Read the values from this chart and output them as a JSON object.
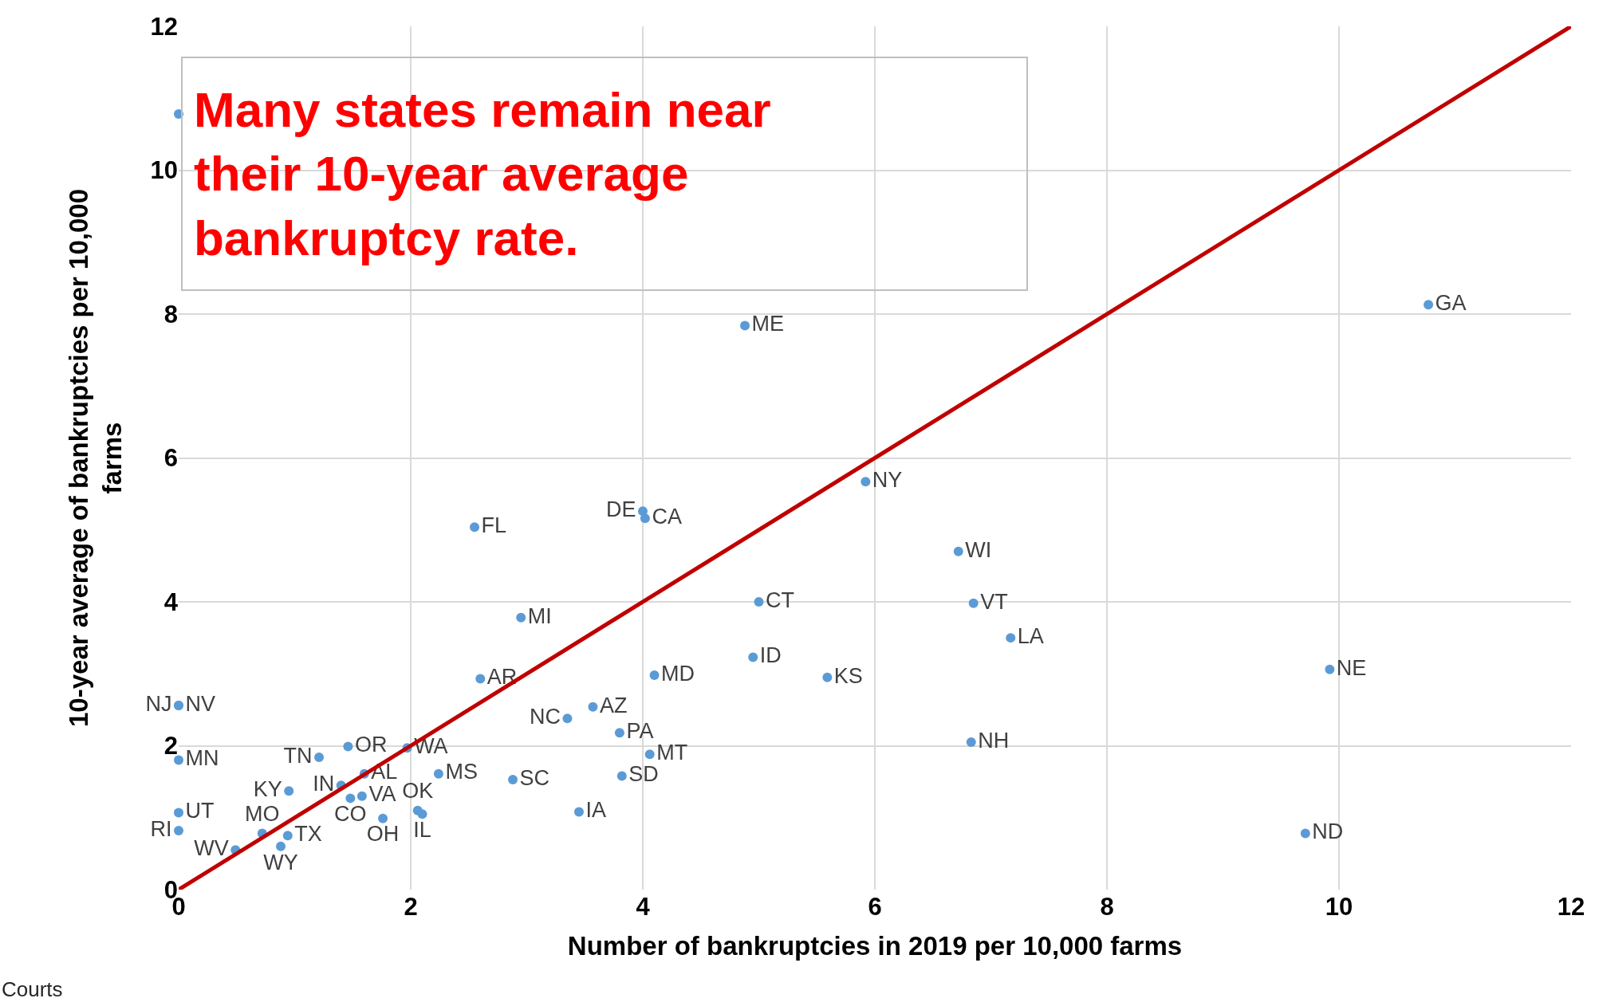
{
  "chart_data": {
    "type": "scatter",
    "xlabel": "Number of bankruptcies in 2019 per 10,000 farms",
    "ylabel": "10-year average of bankruptcies per 10,000\nfarms",
    "xlim": [
      0,
      12
    ],
    "ylim": [
      0,
      12
    ],
    "xticks": [
      0,
      2,
      4,
      6,
      8,
      10,
      12
    ],
    "yticks": [
      0,
      2,
      4,
      6,
      8,
      10,
      12
    ],
    "grid": true,
    "marker": "circle",
    "series": [
      {
        "type": "scatter",
        "color": "#5b9bd5",
        "x": [
          0,
          0,
          0,
          0,
          0,
          0,
          0.49,
          0.72,
          0.88,
          0.94,
          0.95,
          1.21,
          1.46,
          1.4,
          1.6,
          1.48,
          1.58,
          1.97,
          1.76,
          2.06,
          2.1,
          2.24,
          2.88,
          2.6,
          4.1,
          3.57,
          3.35,
          3.8,
          4.06,
          3.82,
          3.45,
          4.88,
          10.77,
          5.92,
          4.0,
          4.02,
          2.55,
          6.72,
          5.0,
          6.85,
          2.95,
          7.17,
          4.95,
          5.59,
          9.92,
          6.83,
          9.71
        ],
        "values": [
          2.56,
          2.56,
          1.8,
          1.07,
          0.82,
          10.78,
          0.55,
          0.78,
          0.6,
          0.75,
          1.37,
          1.84,
          1.99,
          1.45,
          1.61,
          1.27,
          1.3,
          1.97,
          0.99,
          1.1,
          1.05,
          1.61,
          1.53,
          2.93,
          2.98,
          2.54,
          2.38,
          2.18,
          1.88,
          1.58,
          1.08,
          7.84,
          8.13,
          5.67,
          5.26,
          5.16,
          5.04,
          4.7,
          4.0,
          3.98,
          3.78,
          3.5,
          3.23,
          2.95,
          3.06,
          2.05,
          0.78
        ],
        "value_labels": [
          "NV",
          "NJ",
          "MN",
          "UT",
          "RI",
          null,
          "WV",
          "MO",
          "WY",
          "TX",
          "KY",
          "TN",
          "OR",
          "IN",
          "AL",
          "CO",
          "VA",
          "WA",
          "OH",
          "OK",
          "IL",
          "MS",
          "SC",
          "AR",
          "MD",
          "AZ",
          "NC",
          "PA",
          "MT",
          "SD",
          "IA",
          "ME",
          "GA",
          "NY",
          "DE",
          "CA",
          "FL",
          "WI",
          "CT",
          "VT",
          "MI",
          "LA",
          "ID",
          "KS",
          "NE",
          "NH",
          "ND"
        ]
      },
      {
        "type": "line",
        "color": "#c00000",
        "marker": "none",
        "line_style": "solid",
        "x": [
          0,
          12
        ],
        "values": [
          0,
          12
        ]
      }
    ],
    "annotations": [
      "Many states remain near\ntheir 10-year average\nbankruptcy rate.",
      "Courts"
    ]
  }
}
